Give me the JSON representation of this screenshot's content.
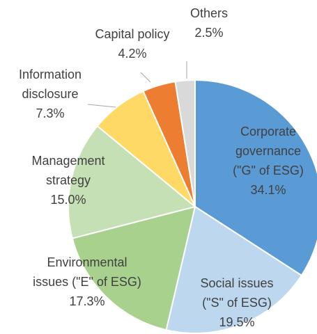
{
  "chart_data": {
    "type": "pie",
    "categories": [
      [
        "Corporate",
        "governance",
        "(\"G\" of ESG)"
      ],
      [
        "Social issues",
        "(\"S\" of ESG)"
      ],
      [
        "Environmental",
        "issues (\"E\" of ESG)"
      ],
      [
        "Management",
        "strategy"
      ],
      [
        "Information",
        "disclosure"
      ],
      [
        "Capital policy"
      ],
      [
        "Others"
      ]
    ],
    "values": [
      34.1,
      19.5,
      17.3,
      15.0,
      7.3,
      4.2,
      2.5
    ],
    "value_labels": [
      "34.1%",
      "19.5%",
      "17.3%",
      "15.0%",
      "7.3%",
      "4.2%",
      "2.5%"
    ],
    "colors": [
      "#5b9bd5",
      "#bdd7ee",
      "#a9d18e",
      "#c5e0b4",
      "#ffd966",
      "#ed7d31",
      "#d9d9d9"
    ]
  }
}
